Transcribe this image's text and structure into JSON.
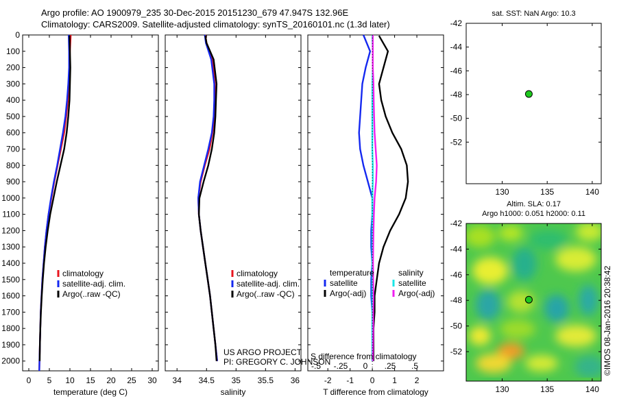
{
  "header": {
    "line1": "Argo profile: AO 1900979_235 30-Dec-2015 20151230_679 47.947S 132.96E",
    "line2": "Climatology: CARS2009. Satellite-adjusted climatology: synTS_20160101.nc (1.3d later)"
  },
  "credits": {
    "project": "US ARGO PROJECT",
    "pi": "PI: GREGORY C. JOHNSON",
    "stamp": "©IMOS 08-Jan-2016 20:38:42"
  },
  "colors": {
    "climatology": "#e8141e",
    "satellite": "#1428f0",
    "argo": "#000000",
    "sal_satellite": "#19e6e6",
    "sal_argo": "#f01ef0",
    "point": "#1ec81e"
  },
  "chart_data": [
    {
      "id": "temperature",
      "type": "line",
      "xlabel": "temperature (deg C)",
      "xlim": [
        -1.5,
        31.5
      ],
      "ylim": [
        2060,
        0
      ],
      "xticks": [
        0,
        5,
        10,
        15,
        20,
        25,
        30
      ],
      "yticks": [
        0,
        100,
        200,
        300,
        400,
        500,
        600,
        700,
        800,
        900,
        1000,
        1100,
        1200,
        1300,
        1400,
        1500,
        1600,
        1700,
        1800,
        1900,
        2000
      ],
      "legend": [
        "climatology",
        "satellite-adj. clim.",
        "Argo(..raw -QC)"
      ],
      "series": [
        {
          "name": "climatology",
          "color": "#e8141e",
          "x": [
            10.2,
            10.0,
            9.9,
            9.7,
            9.5,
            9.1,
            8.6,
            7.8,
            7.0,
            6.2,
            5.5,
            4.8,
            4.3,
            3.9,
            3.6,
            3.3,
            3.1,
            2.9,
            2.8,
            2.7,
            2.6,
            2.55
          ],
          "y": [
            0,
            100,
            200,
            300,
            400,
            500,
            600,
            700,
            800,
            900,
            1000,
            1100,
            1200,
            1300,
            1400,
            1500,
            1600,
            1700,
            1800,
            1900,
            2000,
            2060
          ]
        },
        {
          "name": "satellite-adj. clim.",
          "color": "#1428f0",
          "x": [
            9.7,
            9.8,
            9.8,
            9.6,
            9.3,
            8.9,
            8.3,
            7.6,
            6.9,
            6.1,
            5.4,
            4.8,
            4.3,
            3.9,
            3.6,
            3.3,
            3.1,
            2.9,
            2.8,
            2.7,
            2.6,
            2.55
          ],
          "y": [
            0,
            100,
            200,
            300,
            400,
            500,
            600,
            700,
            800,
            900,
            1000,
            1100,
            1200,
            1300,
            1400,
            1500,
            1600,
            1700,
            1800,
            1900,
            2000,
            2060
          ]
        },
        {
          "name": "Argo(..raw -QC)",
          "color": "#000000",
          "x": [
            9.9,
            10.0,
            10.1,
            10.0,
            9.9,
            9.6,
            9.2,
            8.6,
            7.7,
            6.8,
            6.0,
            5.2,
            4.6,
            4.1,
            3.7,
            3.4,
            3.15,
            2.95,
            2.8,
            2.7,
            2.65
          ],
          "y": [
            5,
            100,
            200,
            300,
            400,
            500,
            600,
            700,
            800,
            900,
            1000,
            1100,
            1200,
            1300,
            1400,
            1500,
            1600,
            1700,
            1800,
            1900,
            2000
          ]
        }
      ]
    },
    {
      "id": "salinity",
      "type": "line",
      "xlabel": "salinity",
      "xlim": [
        33.8,
        36.1
      ],
      "ylim": [
        2060,
        0
      ],
      "xticks": [
        34,
        34.5,
        35,
        35.5,
        36
      ],
      "yticks": [
        0,
        100,
        200,
        300,
        400,
        500,
        600,
        700,
        800,
        900,
        1000,
        1100,
        1200,
        1300,
        1400,
        1500,
        1600,
        1700,
        1800,
        1900,
        2000
      ],
      "legend": [
        "climatology",
        "satellite-adj. clim.",
        "Argo(..raw -QC)"
      ],
      "series": [
        {
          "name": "climatology",
          "color": "#e8141e",
          "x": [
            34.48,
            34.5,
            34.6,
            34.64,
            34.64,
            34.63,
            34.6,
            34.55,
            34.47,
            34.4,
            34.36,
            34.37,
            34.4,
            34.44,
            34.48,
            34.52,
            34.56,
            34.59,
            34.62,
            34.65,
            34.68
          ],
          "y": [
            0,
            50,
            150,
            300,
            400,
            500,
            600,
            700,
            800,
            900,
            1000,
            1100,
            1200,
            1300,
            1400,
            1500,
            1600,
            1700,
            1800,
            1900,
            2000
          ]
        },
        {
          "name": "satellite-adj. clim.",
          "color": "#1428f0",
          "x": [
            34.47,
            34.49,
            34.58,
            34.63,
            34.63,
            34.62,
            34.59,
            34.53,
            34.46,
            34.39,
            34.36,
            34.37,
            34.4,
            34.44,
            34.48,
            34.52,
            34.56,
            34.59,
            34.62,
            34.65,
            34.68
          ],
          "y": [
            0,
            50,
            150,
            300,
            400,
            500,
            600,
            700,
            800,
            900,
            1000,
            1100,
            1200,
            1300,
            1400,
            1500,
            1600,
            1700,
            1800,
            1900,
            2000
          ]
        },
        {
          "name": "Argo(..raw -QC)",
          "color": "#000000",
          "x": [
            34.48,
            34.5,
            34.62,
            34.67,
            34.66,
            34.65,
            34.63,
            34.59,
            34.53,
            34.45,
            34.38,
            34.37,
            34.4,
            34.44,
            34.48,
            34.52,
            34.56,
            34.59,
            34.62,
            34.65,
            34.67
          ],
          "y": [
            5,
            50,
            150,
            300,
            400,
            500,
            600,
            700,
            800,
            900,
            1000,
            1100,
            1200,
            1300,
            1400,
            1500,
            1600,
            1700,
            1800,
            1900,
            2000
          ]
        }
      ]
    },
    {
      "id": "difference",
      "type": "line",
      "xlabel": "T difference from climatology",
      "xlabel_top": "S difference from climatology",
      "xlim": [
        -2.9,
        3.2
      ],
      "ylim": [
        2060,
        0
      ],
      "xticks": [
        -2,
        -1,
        0,
        1,
        2
      ],
      "xticks_top": [
        -0.5,
        -0.25,
        0,
        0.25,
        0.5
      ],
      "yticks": [
        0,
        100,
        200,
        300,
        400,
        500,
        600,
        700,
        800,
        900,
        1000,
        1100,
        1200,
        1300,
        1400,
        1500,
        1600,
        1700,
        1800,
        1900,
        2000
      ],
      "legend_left_title": "temperature",
      "legend_right_title": "salinity",
      "legend": [
        "satellite",
        "Argo(-adj)",
        "satellite",
        "Argo(-adj)"
      ],
      "series": [
        {
          "name": "satellite",
          "color": "#1428f0",
          "x": [
            -0.4,
            -0.1,
            -0.3,
            -0.45,
            -0.5,
            -0.55,
            -0.6,
            -0.55,
            -0.4,
            -0.2,
            0,
            0,
            -0.05,
            -0.05,
            0,
            -0.05,
            -0.05,
            0,
            0,
            0,
            0
          ],
          "y": [
            0,
            100,
            200,
            300,
            400,
            500,
            600,
            700,
            800,
            900,
            1000,
            1100,
            1200,
            1300,
            1400,
            1500,
            1600,
            1700,
            1800,
            1900,
            2000
          ]
        },
        {
          "name": "Argo(-adj)",
          "color": "#000000",
          "x": [
            0.3,
            0.7,
            0.5,
            0.3,
            0.4,
            0.6,
            0.9,
            1.3,
            1.55,
            1.6,
            1.5,
            1.2,
            0.8,
            0.5,
            0.3,
            0.2,
            0.1,
            0.1,
            0.05,
            0.05,
            0.05
          ],
          "y": [
            5,
            100,
            200,
            300,
            400,
            500,
            600,
            700,
            800,
            900,
            1000,
            1100,
            1200,
            1300,
            1400,
            1500,
            1600,
            1700,
            1800,
            1900,
            2000
          ]
        },
        {
          "name": "satellite",
          "color": "#19e6e6",
          "x": [
            0,
            0.02,
            0.02,
            0,
            0,
            0,
            0,
            0,
            0.02,
            0.02,
            0,
            0,
            0,
            0,
            0,
            0,
            0,
            0,
            0,
            0,
            0
          ],
          "y": [
            0,
            100,
            200,
            300,
            400,
            500,
            600,
            700,
            800,
            900,
            1000,
            1100,
            1200,
            1300,
            1400,
            1500,
            1600,
            1700,
            1800,
            1900,
            2000
          ]
        },
        {
          "name": "Argo(-adj)",
          "color": "#f01ef0",
          "x": [
            0.02,
            0.02,
            0.02,
            0.05,
            0.06,
            0.08,
            0.1,
            0.15,
            0.2,
            0.17,
            0.1,
            0.07,
            0.05,
            0.04,
            0.03,
            0.04,
            0.05,
            0.04,
            0.04,
            0.03,
            0.02
          ],
          "y": [
            0,
            100,
            200,
            300,
            400,
            500,
            600,
            700,
            800,
            900,
            1000,
            1100,
            1200,
            1300,
            1400,
            1500,
            1600,
            1700,
            1800,
            1900,
            2000
          ]
        }
      ]
    },
    {
      "id": "sst_map",
      "type": "scatter",
      "title": "sat. SST: NaN Argo: 10.3",
      "xlim": [
        126,
        141
      ],
      "ylim": [
        -55.5,
        -42
      ],
      "xticks": [
        130,
        135,
        140
      ],
      "yticks": [
        -42,
        -44,
        -46,
        -48,
        -50,
        -52
      ],
      "points": [
        {
          "x": 132.96,
          "y": -47.947
        }
      ]
    },
    {
      "id": "sla_map",
      "type": "heatmap",
      "title": "Altim. SLA: 0.17",
      "subtitle": "Argo h1000: 0.051 h2000: 0.11",
      "xlim": [
        126,
        141
      ],
      "ylim": [
        -54.3,
        -42
      ],
      "xticks": [
        130,
        135,
        140
      ],
      "yticks": [
        -42,
        -44,
        -46,
        -48,
        -50,
        -52
      ],
      "points": [
        {
          "x": 132.96,
          "y": -47.947
        }
      ]
    }
  ]
}
